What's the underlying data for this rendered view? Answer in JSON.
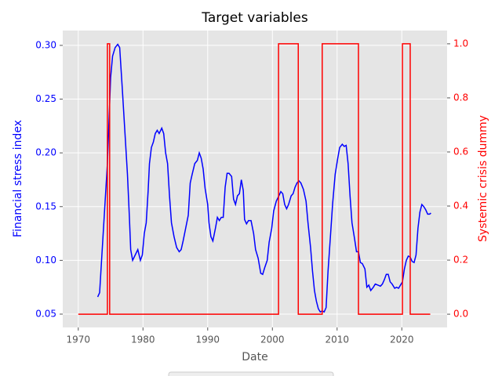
{
  "chart_data": {
    "type": "line",
    "title": "Target variables",
    "xlabel": "Date",
    "ylabel": "Financial stress index",
    "y2label": "Systemic crisis dummy",
    "xlim": [
      1967.6,
      2027.0
    ],
    "xticks": [
      1970,
      1980,
      1990,
      2000,
      2010,
      2020
    ],
    "ylim": [
      0.0376,
      0.3138
    ],
    "yticks": [
      {
        "value": 0.05,
        "label": "0.05"
      },
      {
        "value": 0.1,
        "label": "0.10"
      },
      {
        "value": 0.15,
        "label": "0.15"
      },
      {
        "value": 0.2,
        "label": "0.20"
      },
      {
        "value": 0.25,
        "label": "0.25"
      },
      {
        "value": 0.3,
        "label": "0.30"
      }
    ],
    "y2lim": [
      -0.049,
      1.049
    ],
    "y2ticks": [
      {
        "value": 0,
        "label": "0.0"
      },
      0.2,
      0.4,
      0.6,
      0.8,
      {
        "value": 1,
        "label": "1.0"
      }
    ],
    "grid": true,
    "left_color": "blue",
    "right_color": "red",
    "series": [
      {
        "color": "blue",
        "axis": "y",
        "x": [
          1973.0,
          1973.3,
          1973.6,
          1974.0,
          1974.5,
          1975.0,
          1975.3,
          1975.7,
          1976.1,
          1976.4,
          1976.8,
          1977.2,
          1977.6,
          1977.9,
          1978.1,
          1978.4,
          1978.8,
          1979.2,
          1979.6,
          1979.9,
          1980.2,
          1980.5,
          1980.8,
          1981.0,
          1981.3,
          1981.6,
          1981.9,
          1982.2,
          1982.5,
          1982.9,
          1983.2,
          1983.5,
          1983.8,
          1984.1,
          1984.4,
          1984.8,
          1985.2,
          1985.6,
          1985.9,
          1986.2,
          1986.6,
          1987.0,
          1987.3,
          1987.6,
          1988.0,
          1988.4,
          1988.7,
          1989.0,
          1989.3,
          1989.6,
          1990.0,
          1990.2,
          1990.5,
          1990.8,
          1991.2,
          1991.5,
          1991.8,
          1992.1,
          1992.4,
          1992.7,
          1993.0,
          1993.3,
          1993.7,
          1994.0,
          1994.3,
          1994.6,
          1994.9,
          1995.2,
          1995.5,
          1995.7,
          1996.0,
          1996.3,
          1996.7,
          1997.1,
          1997.4,
          1997.8,
          1998.2,
          1998.5,
          1998.8,
          1999.2,
          1999.5,
          1999.9,
          2000.2,
          2000.6,
          2001.0,
          2001.3,
          2001.6,
          2001.9,
          2002.2,
          2002.5,
          2002.9,
          2003.2,
          2003.5,
          2003.8,
          2004.1,
          2004.4,
          2004.8,
          2005.2,
          2005.5,
          2005.9,
          2006.2,
          2006.5,
          2006.8,
          2007.1,
          2007.4,
          2007.7,
          2008.0,
          2008.3,
          2008.6,
          2009.0,
          2009.3,
          2009.7,
          2010.1,
          2010.4,
          2010.8,
          2011.1,
          2011.4,
          2011.7,
          2012.0,
          2012.3,
          2012.7,
          2013.0,
          2013.3,
          2013.6,
          2013.9,
          2014.3,
          2014.6,
          2014.9,
          2015.2,
          2015.6,
          2015.9,
          2016.3,
          2016.7,
          2017.0,
          2017.3,
          2017.6,
          2017.9,
          2018.2,
          2018.5,
          2018.9,
          2019.2,
          2019.5,
          2019.8,
          2020.1,
          2020.4,
          2020.7,
          2021.0,
          2021.3,
          2021.6,
          2021.9,
          2022.2,
          2022.5,
          2022.8,
          2023.1,
          2023.4,
          2023.7,
          2024.0,
          2024.3,
          2024.5
        ],
        "values": [
          0.066,
          0.07,
          0.1,
          0.14,
          0.19,
          0.27,
          0.29,
          0.298,
          0.301,
          0.298,
          0.26,
          0.22,
          0.18,
          0.14,
          0.11,
          0.1,
          0.105,
          0.11,
          0.1,
          0.105,
          0.125,
          0.135,
          0.165,
          0.19,
          0.205,
          0.21,
          0.218,
          0.221,
          0.218,
          0.223,
          0.218,
          0.2,
          0.19,
          0.16,
          0.135,
          0.122,
          0.112,
          0.108,
          0.11,
          0.118,
          0.13,
          0.142,
          0.172,
          0.18,
          0.19,
          0.193,
          0.2,
          0.195,
          0.185,
          0.167,
          0.152,
          0.135,
          0.122,
          0.118,
          0.13,
          0.14,
          0.137,
          0.14,
          0.14,
          0.168,
          0.181,
          0.181,
          0.178,
          0.157,
          0.152,
          0.16,
          0.162,
          0.175,
          0.165,
          0.138,
          0.134,
          0.137,
          0.137,
          0.125,
          0.11,
          0.102,
          0.088,
          0.087,
          0.093,
          0.1,
          0.117,
          0.13,
          0.146,
          0.155,
          0.16,
          0.164,
          0.162,
          0.152,
          0.148,
          0.152,
          0.16,
          0.162,
          0.168,
          0.172,
          0.174,
          0.172,
          0.166,
          0.155,
          0.135,
          0.112,
          0.09,
          0.072,
          0.062,
          0.055,
          0.052,
          0.053,
          0.052,
          0.056,
          0.09,
          0.125,
          0.152,
          0.18,
          0.195,
          0.205,
          0.208,
          0.206,
          0.207,
          0.19,
          0.16,
          0.135,
          0.12,
          0.108,
          0.108,
          0.098,
          0.097,
          0.092,
          0.075,
          0.077,
          0.072,
          0.075,
          0.078,
          0.077,
          0.076,
          0.078,
          0.082,
          0.087,
          0.087,
          0.08,
          0.078,
          0.074,
          0.075,
          0.074,
          0.077,
          0.08,
          0.092,
          0.1,
          0.104,
          0.103,
          0.099,
          0.098,
          0.105,
          0.13,
          0.145,
          0.152,
          0.15,
          0.147,
          0.143,
          0.143,
          0.144
        ]
      },
      {
        "color": "red",
        "axis": "y2",
        "x": [
          1970.0,
          1974.5,
          1974.5,
          1974.85,
          1974.85,
          2000.95,
          2000.95,
          2004.0,
          2004.0,
          2007.7,
          2007.7,
          2013.3,
          2013.3,
          2020.1,
          2020.1,
          2021.3,
          2021.3,
          2024.4
        ],
        "values": [
          0,
          0,
          1,
          1,
          0,
          0,
          1,
          1,
          0,
          0,
          1,
          1,
          0,
          0,
          1,
          1,
          0,
          0
        ]
      }
    ]
  }
}
